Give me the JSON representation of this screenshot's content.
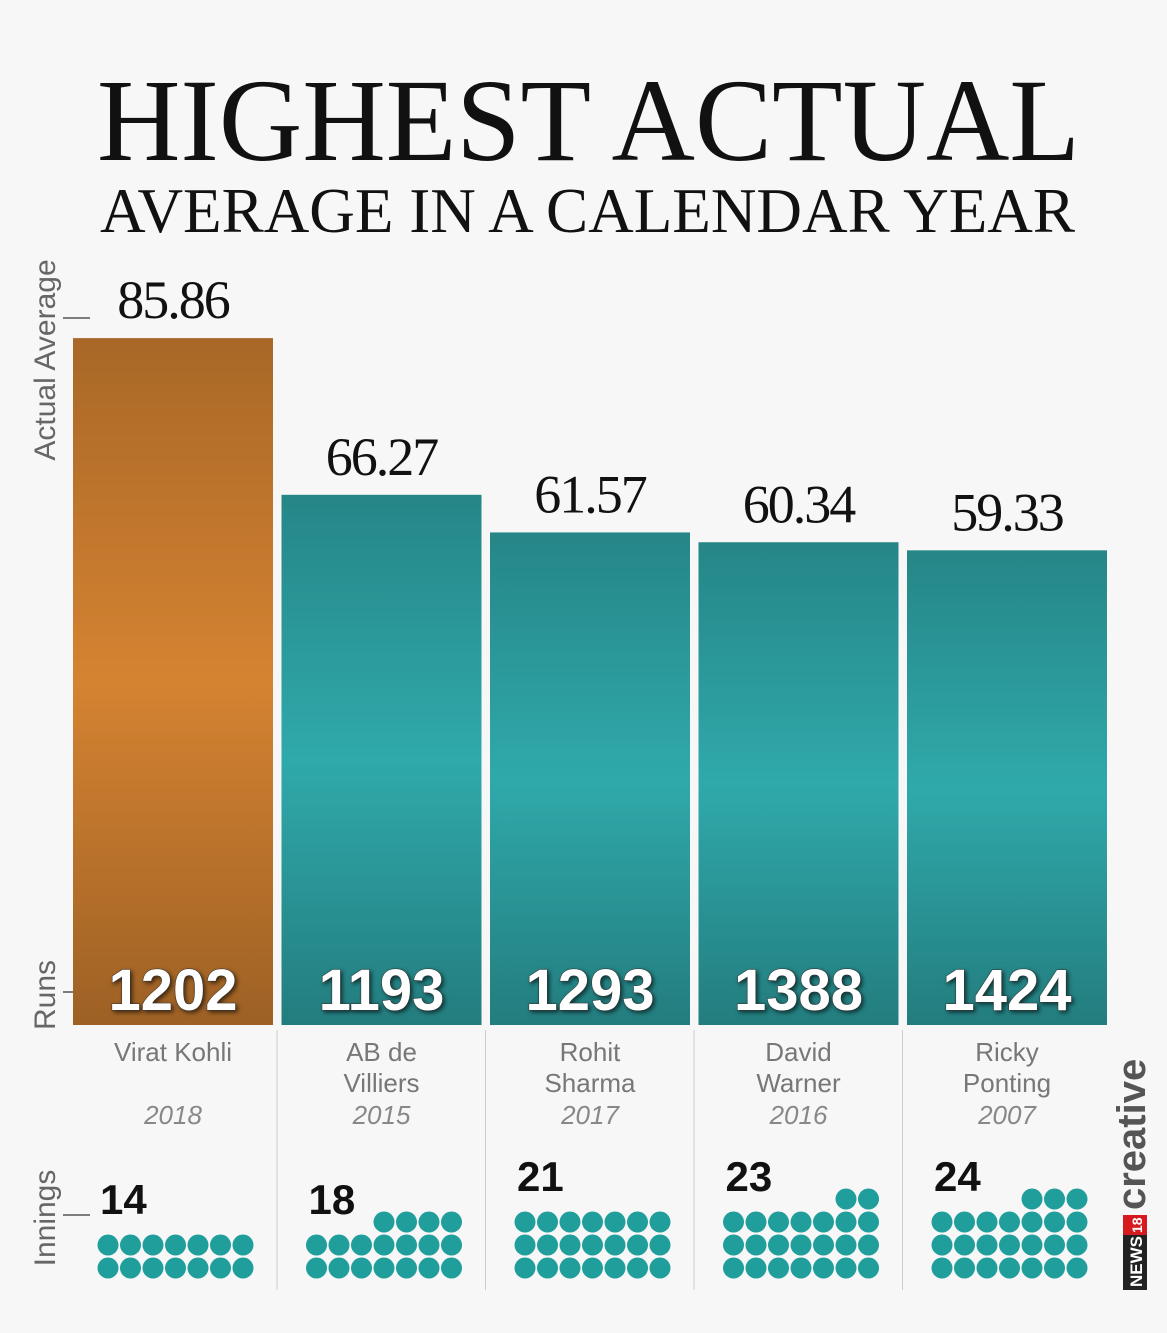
{
  "chart_data": {
    "type": "bar",
    "title": "HIGHEST ACTUAL",
    "subtitle": "AVERAGE IN A CALENDAR YEAR",
    "y_label": "Actual Average",
    "runs_label": "Runs",
    "innings_label": "Innings",
    "categories": [
      "Virat Kohli",
      "AB de Villiers",
      "Rohit Sharma",
      "David Warner",
      "Ricky Ponting"
    ],
    "years": [
      "2018",
      "2015",
      "2017",
      "2016",
      "2007"
    ],
    "values": [
      85.86,
      66.27,
      61.57,
      60.34,
      59.33
    ],
    "runs": [
      1202,
      1193,
      1293,
      1388,
      1424
    ],
    "innings": [
      14,
      18,
      21,
      23,
      24
    ],
    "colors": [
      "#e08a34",
      "#32b2b4",
      "#32b2b4",
      "#32b2b4",
      "#32b2b4"
    ],
    "dot_color": "#1f9e9c",
    "ylim": [
      0,
      90
    ],
    "logo": {
      "brand": "NEWS",
      "number": "18",
      "word": "creative"
    }
  }
}
